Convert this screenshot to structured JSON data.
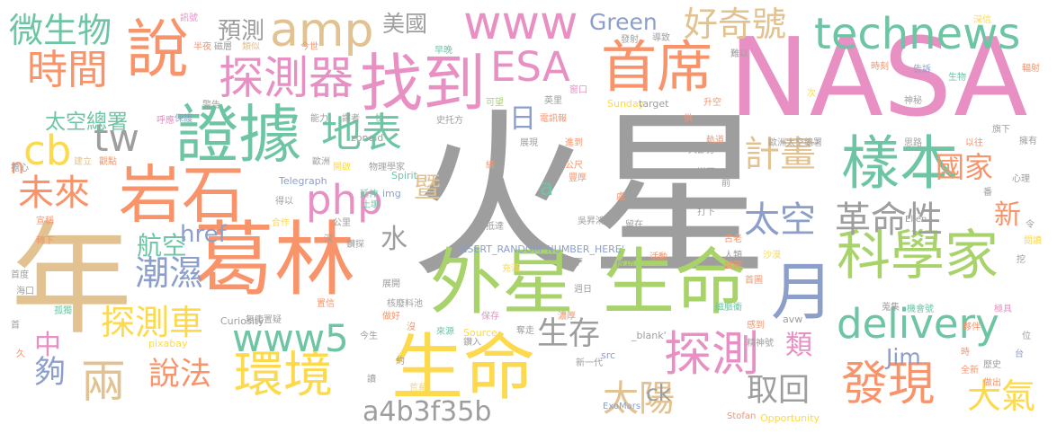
{
  "word_cloud": {
    "palette": {
      "gray": "#9e9e9e",
      "pink": "#e88fc4",
      "green": "#a8d26a",
      "yellow": "#fcd94d",
      "orange": "#f8936a",
      "teal": "#6dc5a4",
      "blue": "#8c9fcb",
      "tan": "#e1c290"
    },
    "words": [
      {
        "text": "火星",
        "color": "gray"
      },
      {
        "text": "NASA",
        "color": "pink"
      },
      {
        "text": "年",
        "color": "tan"
      },
      {
        "text": "葛林",
        "color": "orange"
      },
      {
        "text": "外星",
        "color": "green"
      },
      {
        "text": "生命",
        "color": "green"
      },
      {
        "text": "生命",
        "color": "yellow"
      },
      {
        "text": "月",
        "color": "blue"
      },
      {
        "text": "證據",
        "color": "teal"
      },
      {
        "text": "岩石",
        "color": "orange"
      },
      {
        "text": "找到",
        "color": "pink"
      },
      {
        "text": "說",
        "color": "orange"
      },
      {
        "text": "科學家",
        "color": "green"
      },
      {
        "text": "樣本",
        "color": "teal"
      },
      {
        "text": "首席",
        "color": "orange"
      },
      {
        "text": "環境",
        "color": "yellow"
      },
      {
        "text": "發現",
        "color": "orange"
      },
      {
        "text": "探測",
        "color": "pink"
      },
      {
        "text": "探測器",
        "color": "pink"
      },
      {
        "text": "時間",
        "color": "orange"
      },
      {
        "text": "www",
        "color": "pink"
      },
      {
        "text": "amp",
        "color": "tan"
      },
      {
        "text": "technews",
        "color": "teal"
      },
      {
        "text": "ESA",
        "color": "pink"
      },
      {
        "text": "www5",
        "color": "teal"
      },
      {
        "text": "delivery",
        "color": "teal"
      },
      {
        "text": "php",
        "color": "pink"
      },
      {
        "text": "cb",
        "color": "yellow"
      },
      {
        "text": "tw",
        "color": "gray"
      },
      {
        "text": "地表",
        "color": "teal"
      },
      {
        "text": "計畫",
        "color": "tan"
      },
      {
        "text": "太空",
        "color": "blue"
      },
      {
        "text": "革命性",
        "color": "gray"
      },
      {
        "text": "好奇號",
        "color": "tan"
      },
      {
        "text": "未來",
        "color": "orange"
      },
      {
        "text": "微生物",
        "color": "teal"
      },
      {
        "text": "探測車",
        "color": "yellow"
      },
      {
        "text": "潮濕",
        "color": "blue"
      },
      {
        "text": "兩",
        "color": "tan"
      },
      {
        "text": "太陽",
        "color": "tan"
      },
      {
        "text": "大氣",
        "color": "yellow"
      },
      {
        "text": "說法",
        "color": "orange"
      },
      {
        "text": "生存",
        "color": "gray"
      },
      {
        "text": "取回",
        "color": "gray"
      },
      {
        "text": "國家",
        "color": "orange"
      },
      {
        "text": "新",
        "color": "orange"
      },
      {
        "text": "類",
        "color": "pink"
      },
      {
        "text": "日",
        "color": "blue"
      },
      {
        "text": "水",
        "color": "gray"
      },
      {
        "text": "夠",
        "color": "blue"
      },
      {
        "text": "中",
        "color": "pink"
      },
      {
        "text": "a4b3f35b",
        "color": "gray"
      },
      {
        "text": "航空",
        "color": "teal"
      },
      {
        "text": "href",
        "color": "blue"
      },
      {
        "text": "Green",
        "color": "blue"
      },
      {
        "text": "預測",
        "color": "gray"
      },
      {
        "text": "美國",
        "color": "gray"
      },
      {
        "text": "太空總署",
        "color": "teal"
      },
      {
        "text": "Jim",
        "color": "blue"
      },
      {
        "text": "ck",
        "color": "gray"
      },
      {
        "text": "暨",
        "color": "tan"
      },
      {
        "text": "n",
        "color": "orange"
      },
      {
        "text": "a",
        "color": "teal"
      },
      {
        "text": "INSERT_RANDOM_NUMBER_HERE'",
        "color": "blue"
      },
      {
        "text": "zoneid",
        "color": "gray"
      },
      {
        "text": "Telegraph",
        "color": "blue"
      },
      {
        "text": "Spirit",
        "color": "teal"
      },
      {
        "text": "Curiosity",
        "color": "gray"
      },
      {
        "text": "Opportunity",
        "color": "yellow"
      },
      {
        "text": "ExoMars",
        "color": "blue"
      },
      {
        "text": "Stofan",
        "color": "orange"
      },
      {
        "text": "Ellen",
        "color": "gray"
      },
      {
        "text": "Sunday",
        "color": "yellow"
      },
      {
        "text": "target",
        "color": "gray"
      },
      {
        "text": "pixabay",
        "color": "yellow"
      },
      {
        "text": "Source",
        "color": "yellow"
      },
      {
        "text": "_blank'",
        "color": "gray"
      },
      {
        "text": "src",
        "color": "blue"
      },
      {
        "text": "avw",
        "color": "gray"
      },
      {
        "text": "img",
        "color": "blue"
      },
      {
        "text": "訊號",
        "color": "pink"
      },
      {
        "text": "半夜",
        "color": "orange"
      },
      {
        "text": "類似",
        "color": "tan"
      },
      {
        "text": "磁層",
        "color": "gray"
      },
      {
        "text": "今世",
        "color": "orange"
      },
      {
        "text": "呼應",
        "color": "pink"
      },
      {
        "text": "保護",
        "color": "blue"
      },
      {
        "text": "警告",
        "color": "gray"
      },
      {
        "text": "能力",
        "color": "gray"
      },
      {
        "text": "譯者",
        "color": "gray"
      },
      {
        "text": "快",
        "color": "teal"
      },
      {
        "text": "史托方",
        "color": "gray"
      },
      {
        "text": "可望",
        "color": "green"
      },
      {
        "text": "早晚",
        "color": "teal"
      },
      {
        "text": "英里",
        "color": "gray"
      },
      {
        "text": "窗口",
        "color": "pink"
      },
      {
        "text": "發射",
        "color": "gray"
      },
      {
        "text": "導致",
        "color": "gray"
      },
      {
        "text": "難以",
        "color": "gray"
      },
      {
        "text": "深信",
        "color": "yellow"
      },
      {
        "text": "時刻",
        "color": "orange"
      },
      {
        "text": "告訴",
        "color": "blue"
      },
      {
        "text": "生物",
        "color": "teal"
      },
      {
        "text": "輻射",
        "color": "orange"
      },
      {
        "text": "次",
        "color": "yellow"
      },
      {
        "text": "供",
        "color": "orange"
      },
      {
        "text": "升空",
        "color": "orange"
      },
      {
        "text": "神秘",
        "color": "gray"
      },
      {
        "text": "旗下",
        "color": "gray"
      },
      {
        "text": "擁有",
        "color": "gray"
      },
      {
        "text": "以往",
        "color": "orange"
      },
      {
        "text": "思路",
        "color": "gray"
      },
      {
        "text": "歐洲太空總署",
        "color": "gray"
      },
      {
        "text": "軌道",
        "color": "orange"
      },
      {
        "text": "電訊報",
        "color": "orange"
      },
      {
        "text": "展現",
        "color": "gray"
      },
      {
        "text": "進到",
        "color": "orange"
      },
      {
        "text": "擔心",
        "color": "gray"
      },
      {
        "text": "建立",
        "color": "tan"
      },
      {
        "text": "觀點",
        "color": "orange"
      },
      {
        "text": "歐洲",
        "color": "gray"
      },
      {
        "text": "開啟",
        "color": "yellow"
      },
      {
        "text": "物理學家",
        "color": "gray"
      },
      {
        "text": "大部分",
        "color": "gray"
      },
      {
        "text": "送至",
        "color": "gray"
      },
      {
        "text": "前",
        "color": "gray"
      },
      {
        "text": "心理",
        "color": "gray"
      },
      {
        "text": "番",
        "color": "gray"
      },
      {
        "text": "繞",
        "color": "orange"
      },
      {
        "text": "公尺",
        "color": "orange"
      },
      {
        "text": "豐厚",
        "color": "orange"
      },
      {
        "text": "得以",
        "color": "gray"
      },
      {
        "text": "延伸",
        "color": "teal"
      },
      {
        "text": "土壤",
        "color": "teal"
      },
      {
        "text": "宣稱",
        "color": "orange"
      },
      {
        "text": "合作",
        "color": "yellow"
      },
      {
        "text": "公里",
        "color": "gray"
      },
      {
        "text": "處",
        "color": "orange"
      },
      {
        "text": "抵達",
        "color": "gray"
      },
      {
        "text": "吳昇鴻",
        "color": "gray"
      },
      {
        "text": "留在",
        "color": "gray"
      },
      {
        "text": "打下",
        "color": "gray"
      },
      {
        "text": "古老",
        "color": "orange"
      },
      {
        "text": "令",
        "color": "gray"
      },
      {
        "text": "閱讀",
        "color": "yellow"
      },
      {
        "text": "轉下",
        "color": "orange"
      },
      {
        "text": "深",
        "color": "gray"
      },
      {
        "text": "鑽探",
        "color": "gray"
      },
      {
        "text": "充滿",
        "color": "yellow"
      },
      {
        "text": "活動",
        "color": "orange"
      },
      {
        "text": "人類",
        "color": "gray"
      },
      {
        "text": "沙漠",
        "color": "yellow"
      },
      {
        "text": "試圖",
        "color": "orange"
      },
      {
        "text": "之下",
        "color": "gray"
      },
      {
        "text": "成功",
        "color": "gray"
      },
      {
        "text": "挖",
        "color": "gray"
      },
      {
        "text": "首度",
        "color": "gray"
      },
      {
        "text": "海口",
        "color": "gray"
      },
      {
        "text": "展開",
        "color": "gray"
      },
      {
        "text": "週日",
        "color": "gray"
      },
      {
        "text": "核廢料池",
        "color": "gray"
      },
      {
        "text": "首圖",
        "color": "orange"
      },
      {
        "text": "置信",
        "color": "orange"
      },
      {
        "text": "磁脈衝",
        "color": "teal"
      },
      {
        "text": "蒐集",
        "color": "gray"
      },
      {
        "text": "機會號",
        "color": "teal"
      },
      {
        "text": "極具",
        "color": "pink"
      },
      {
        "text": "首",
        "color": "gray"
      },
      {
        "text": "孤獨",
        "color": "teal"
      },
      {
        "text": "無庸置疑",
        "color": "gray"
      },
      {
        "text": "做好",
        "color": "orange"
      },
      {
        "text": "保存",
        "color": "pink"
      },
      {
        "text": "濃厚",
        "color": "orange"
      },
      {
        "text": "感到",
        "color": "orange"
      },
      {
        "text": "今生",
        "color": "gray"
      },
      {
        "text": "沒",
        "color": "orange"
      },
      {
        "text": "來源",
        "color": "teal"
      },
      {
        "text": "鑽入",
        "color": "gray"
      },
      {
        "text": "奪走",
        "color": "gray"
      },
      {
        "text": "精神號",
        "color": "gray"
      },
      {
        "text": "時",
        "color": "orange"
      },
      {
        "text": "夥伴",
        "color": "orange"
      },
      {
        "text": "台",
        "color": "blue"
      },
      {
        "text": "位",
        "color": "gray"
      },
      {
        "text": "久",
        "color": "orange"
      },
      {
        "text": "約",
        "color": "gray"
      },
      {
        "text": "新一代",
        "color": "gray"
      },
      {
        "text": "全新",
        "color": "orange"
      },
      {
        "text": "歷史",
        "color": "gray"
      },
      {
        "text": "做出",
        "color": "orange"
      },
      {
        "text": "讀",
        "color": "gray"
      },
      {
        "text": "荒蕪",
        "color": "yellow"
      },
      {
        "text": "基礎",
        "color": "gray"
      },
      {
        "text": "大氣層",
        "color": "teal"
      },
      {
        "text": "指出",
        "color": "orange"
      },
      {
        "text": "哥白尼",
        "color": "orange"
      },
      {
        "text": "終於",
        "color": "orange"
      },
      {
        "text": "意義",
        "color": "orange"
      },
      {
        "text": "琼麗石",
        "color": "yellow"
      }
    ]
  }
}
